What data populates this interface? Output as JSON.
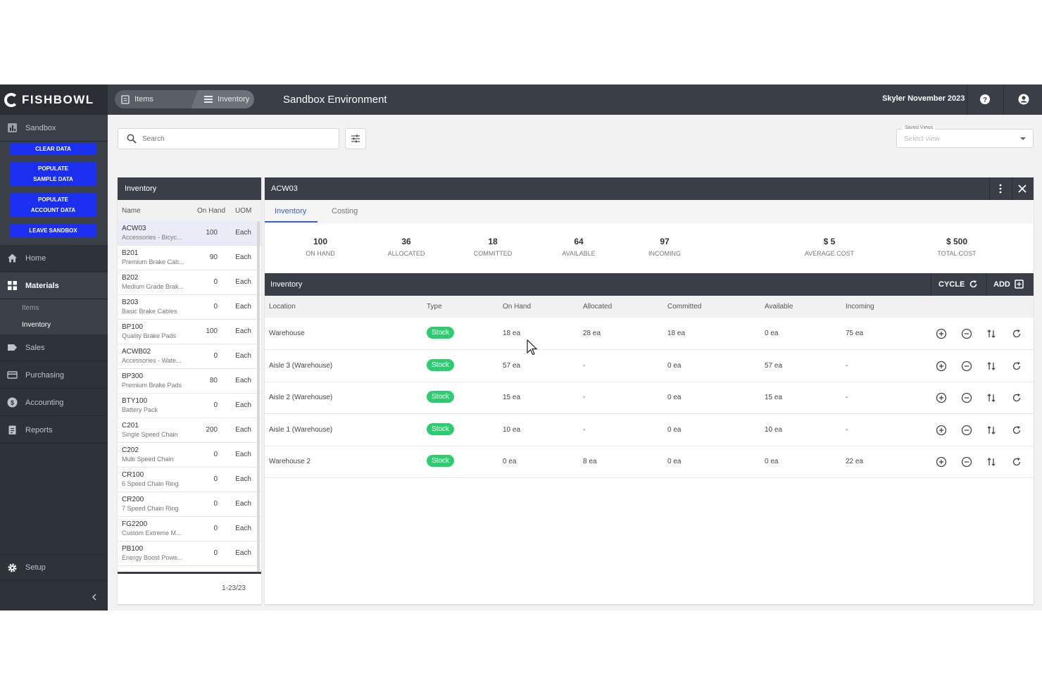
{
  "app": {
    "logo_text": "FISHBOWL",
    "environment_title": "Sandbox Environment",
    "user_label": "Skyler November 2023"
  },
  "breadcrumb": {
    "items_label": "Items",
    "inventory_label": "Inventory"
  },
  "sidebar": {
    "sandbox_label": "Sandbox",
    "buttons": {
      "clear_data": "CLEAR DATA",
      "populate_sample": "POPULATE\nSAMPLE DATA",
      "populate_account": "POPULATE\nACCOUNT DATA",
      "leave_sandbox": "LEAVE SANDBOX"
    },
    "home": "Home",
    "materials": "Materials",
    "materials_items": "Items",
    "materials_inventory": "Inventory",
    "sales": "Sales",
    "purchasing": "Purchasing",
    "accounting": "Accounting",
    "reports": "Reports",
    "setup": "Setup"
  },
  "search": {
    "placeholder": "Search"
  },
  "saved_views": {
    "label": "Saved Views",
    "placeholder": "Select view"
  },
  "inventory_list": {
    "title": "Inventory",
    "columns": {
      "name": "Name",
      "on_hand": "On Hand",
      "uom": "UOM"
    },
    "rows": [
      {
        "name": "ACW03",
        "desc": "Accessories - Bicyc...",
        "qty": "100",
        "uom": "Each"
      },
      {
        "name": "B201",
        "desc": "Premium Brake Cab...",
        "qty": "90",
        "uom": "Each"
      },
      {
        "name": "B202",
        "desc": "Medium Grade Brak...",
        "qty": "0",
        "uom": "Each"
      },
      {
        "name": "B203",
        "desc": "Basic Brake Cables",
        "qty": "0",
        "uom": "Each"
      },
      {
        "name": "BP100",
        "desc": "Quality Brake Pads",
        "qty": "100",
        "uom": "Each"
      },
      {
        "name": "ACWB02",
        "desc": "Accessories - Wate...",
        "qty": "0",
        "uom": "Each"
      },
      {
        "name": "BP300",
        "desc": "Premium Brake Pads",
        "qty": "80",
        "uom": "Each"
      },
      {
        "name": "BTY100",
        "desc": "Battery Pack",
        "qty": "0",
        "uom": "Each"
      },
      {
        "name": "C201",
        "desc": "Single Speed Chain",
        "qty": "200",
        "uom": "Each"
      },
      {
        "name": "C202",
        "desc": "Multi Speed Chain",
        "qty": "0",
        "uom": "Each"
      },
      {
        "name": "CR100",
        "desc": "6 Speed Chain Ring",
        "qty": "0",
        "uom": "Each"
      },
      {
        "name": "CR200",
        "desc": "7 Speed Chain Ring",
        "qty": "0",
        "uom": "Each"
      },
      {
        "name": "FG2200",
        "desc": "Custom Extreme M...",
        "qty": "0",
        "uom": "Each"
      },
      {
        "name": "PB100",
        "desc": "Energy Boost Powe...",
        "qty": "0",
        "uom": "Each"
      }
    ],
    "pager": "1-23/23"
  },
  "detail": {
    "title": "ACW03",
    "tabs": {
      "inventory": "Inventory",
      "costing": "Costing"
    },
    "stats": [
      {
        "value": "100",
        "label": "ON HAND"
      },
      {
        "value": "36",
        "label": "ALLOCATED"
      },
      {
        "value": "18",
        "label": "COMMITTED"
      },
      {
        "value": "64",
        "label": "AVAILABLE"
      },
      {
        "value": "97",
        "label": "INCOMING"
      },
      {
        "value": "$ 5",
        "label": "AVERAGE COST"
      },
      {
        "value": "$ 500",
        "label": "TOTAL COST"
      }
    ],
    "inventory_section": {
      "title": "Inventory",
      "cycle_label": "CYCLE",
      "add_label": "ADD",
      "columns": {
        "location": "Location",
        "type": "Type",
        "on_hand": "On Hand",
        "allocated": "Allocated",
        "committed": "Committed",
        "available": "Available",
        "incoming": "Incoming"
      },
      "rows": [
        {
          "location": "Warehouse",
          "type": "Stock",
          "on_hand": "18 ea",
          "allocated": "28 ea",
          "committed": "18 ea",
          "available": "0 ea",
          "incoming": "75 ea"
        },
        {
          "location": "Aisle 3 (Warehouse)",
          "type": "Stock",
          "on_hand": "57 ea",
          "allocated": "-",
          "committed": "0 ea",
          "available": "57 ea",
          "incoming": "-"
        },
        {
          "location": "Aisle 2 (Warehouse)",
          "type": "Stock",
          "on_hand": "15 ea",
          "allocated": "-",
          "committed": "0 ea",
          "available": "15 ea",
          "incoming": "-"
        },
        {
          "location": "Aisle 1 (Warehouse)",
          "type": "Stock",
          "on_hand": "10 ea",
          "allocated": "-",
          "committed": "0 ea",
          "available": "10 ea",
          "incoming": "-"
        },
        {
          "location": "Warehouse 2",
          "type": "Stock",
          "on_hand": "0 ea",
          "allocated": "8 ea",
          "committed": "0 ea",
          "available": "0 ea",
          "incoming": "22 ea"
        }
      ]
    }
  },
  "colors": {
    "accent_blue": "#1a2ff0",
    "stock_green": "#2ecc71",
    "header_dark": "#3a3f47",
    "tab_active": "#3b5bdb"
  }
}
